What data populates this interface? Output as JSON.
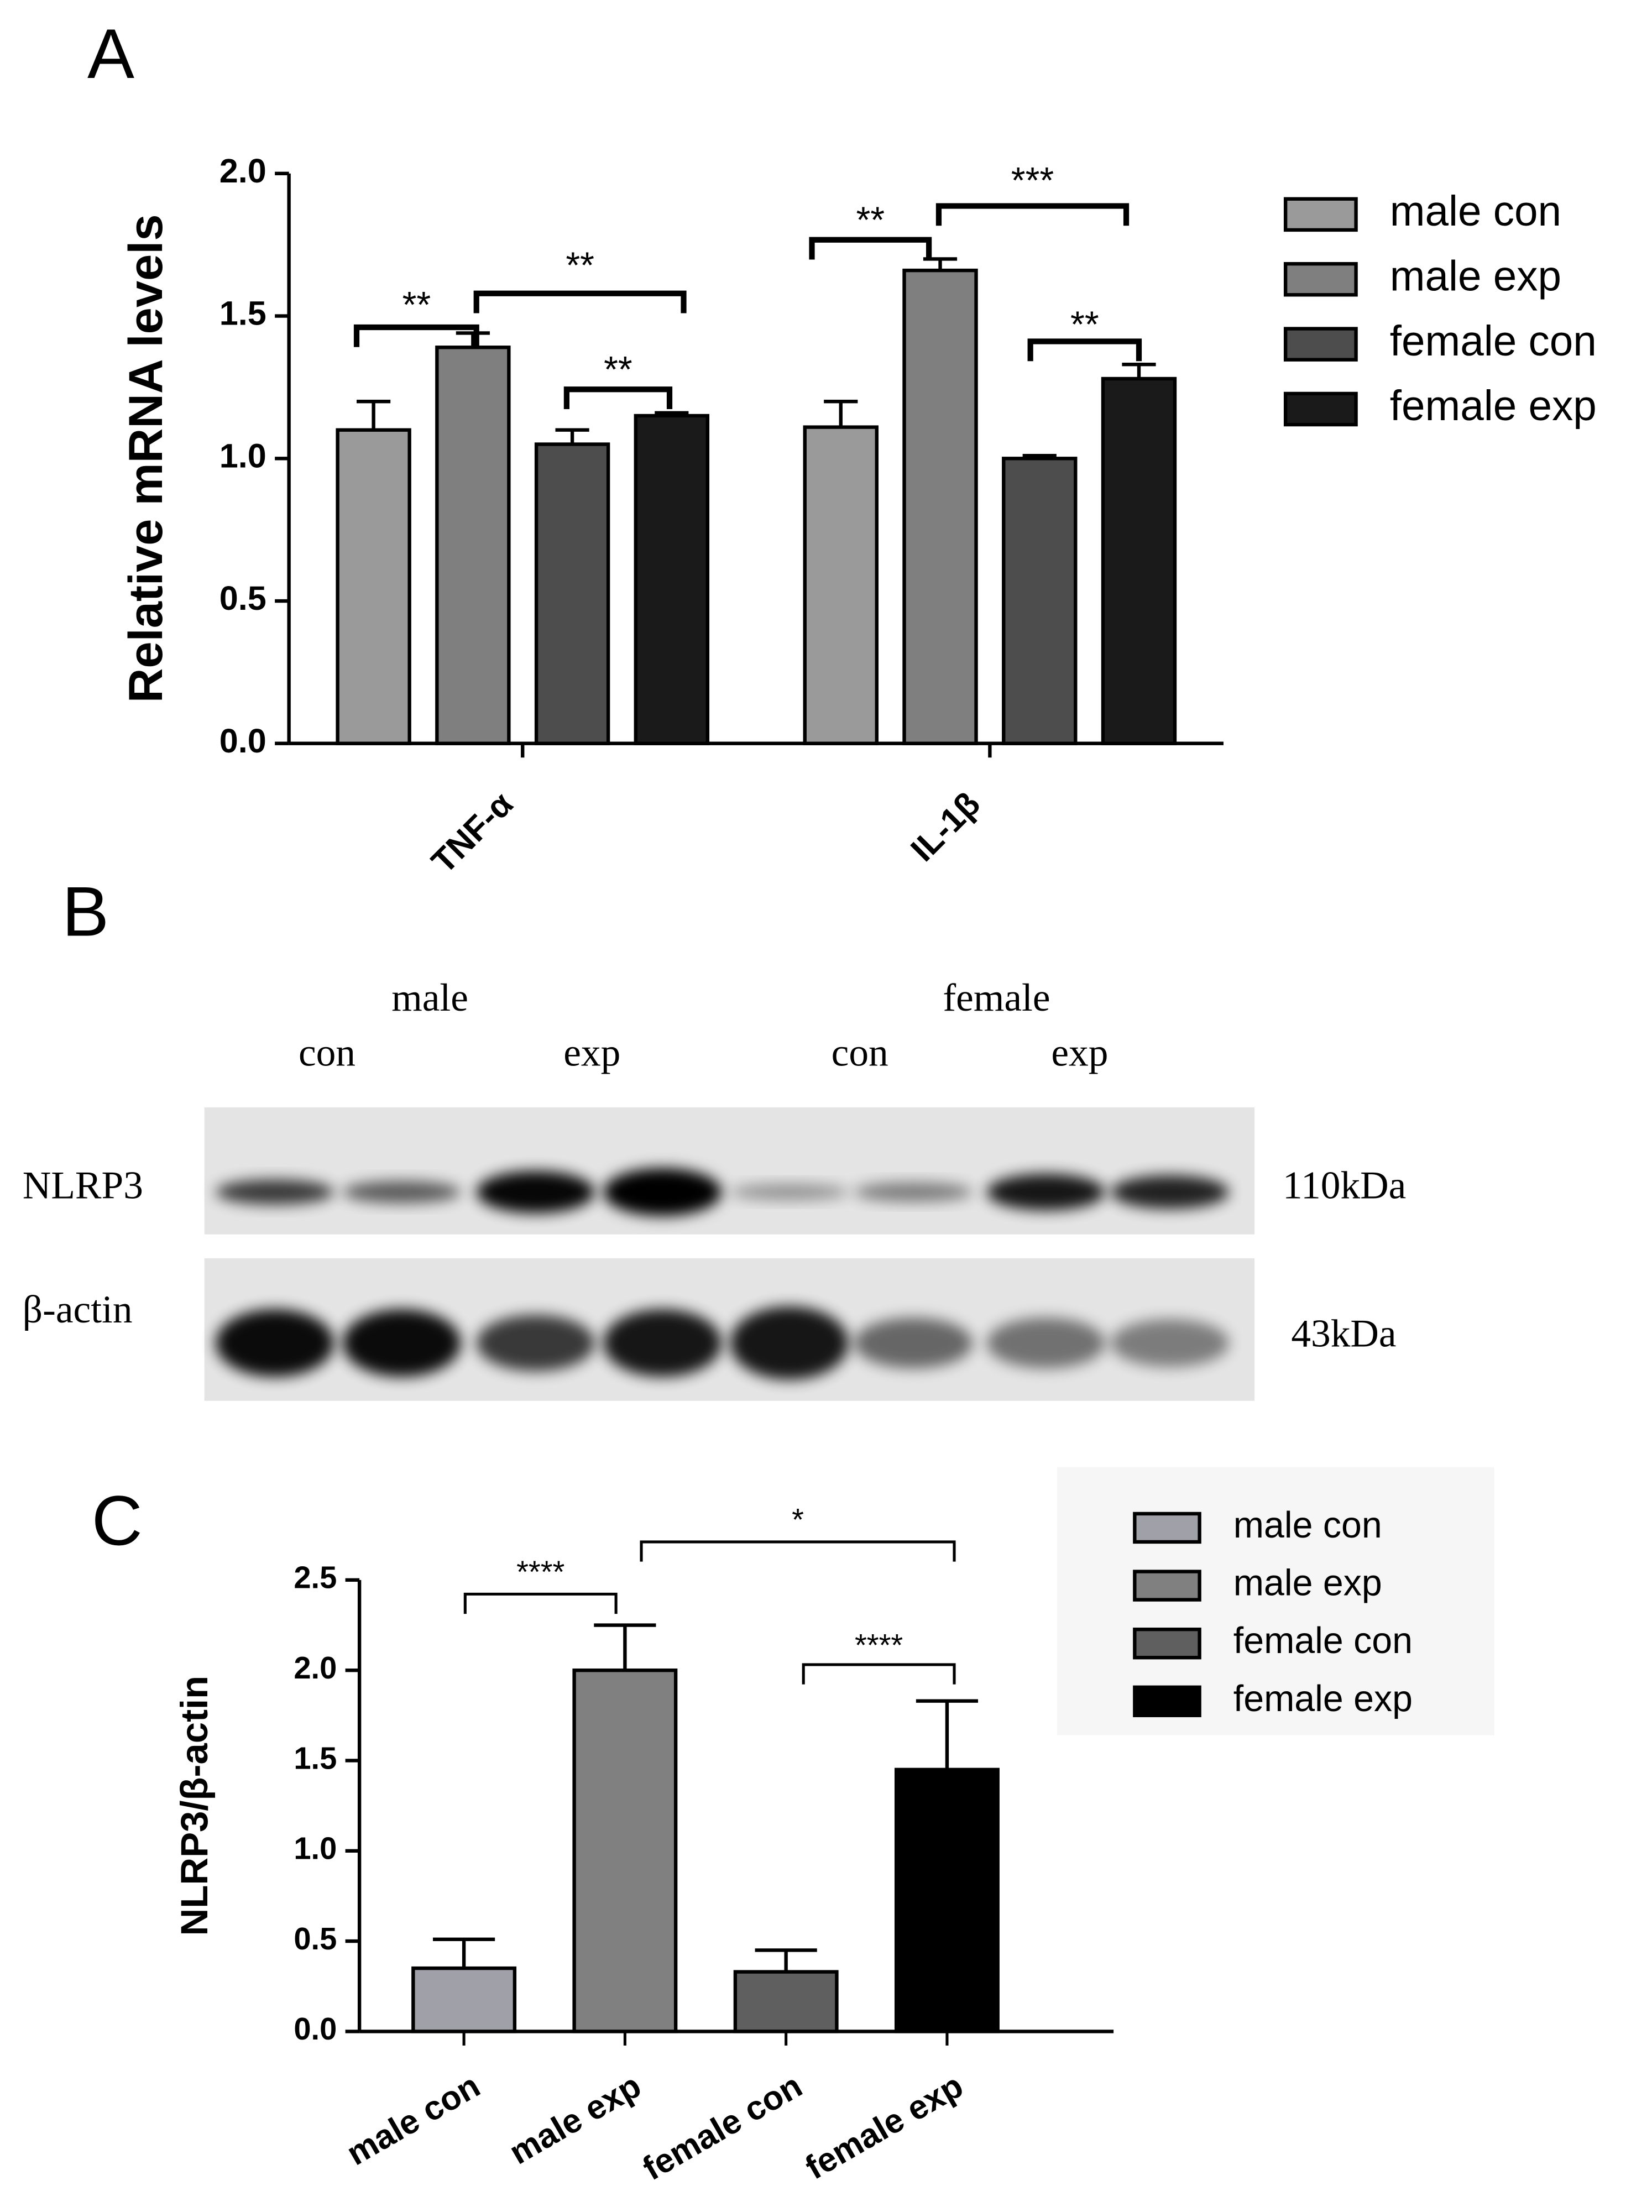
{
  "chart_data": [
    {
      "type": "grouped_bar",
      "panel_label": "A",
      "ylabel": "Relative mRNA levels",
      "categories": [
        "TNF-α",
        "IL-1β"
      ],
      "series": [
        {
          "name": "male con",
          "color": "#9a9a9a",
          "values": [
            1.1,
            1.11
          ],
          "errors": [
            0.1,
            0.09
          ]
        },
        {
          "name": "male exp",
          "color": "#7f7f7f",
          "values": [
            1.39,
            1.66
          ],
          "errors": [
            0.05,
            0.04
          ]
        },
        {
          "name": "female con",
          "color": "#4d4d4d",
          "values": [
            1.05,
            1.0
          ],
          "errors": [
            0.05,
            0.01
          ]
        },
        {
          "name": "female exp",
          "color": "#1a1a1a",
          "values": [
            1.15,
            1.28
          ],
          "errors": [
            0.01,
            0.05
          ]
        }
      ],
      "ylim": [
        0,
        2
      ],
      "yticks": [
        {
          "value": 0,
          "label": "0.0"
        },
        {
          "value": 0.5,
          "label": "0.5"
        },
        {
          "value": 1,
          "label": "1.0"
        },
        {
          "value": 1.5,
          "label": "1.5"
        },
        {
          "value": 2,
          "label": "2.0"
        }
      ],
      "annotations": [
        "**",
        "**",
        "**",
        "**",
        "***",
        "**"
      ]
    },
    {
      "type": "bar",
      "panel_label": "C",
      "ylabel": "NLRP3/β-actin",
      "categories": [
        "male con",
        "male exp",
        "female con",
        "female exp"
      ],
      "values": [
        0.35,
        2.0,
        0.33,
        1.45
      ],
      "errors": [
        0.16,
        0.25,
        0.12,
        0.38
      ],
      "colors": [
        "#a0a0a8",
        "#808080",
        "#5f5f5f",
        "#000000"
      ],
      "ylim": [
        0,
        2.5
      ],
      "yticks": [
        {
          "value": 0,
          "label": "0.0"
        },
        {
          "value": 0.5,
          "label": "0.5"
        },
        {
          "value": 1,
          "label": "1.0"
        },
        {
          "value": 1.5,
          "label": "1.5"
        },
        {
          "value": 2,
          "label": "2.0"
        },
        {
          "value": 2.5,
          "label": "2.5"
        }
      ],
      "annotations": [
        "****",
        "*",
        "****"
      ]
    }
  ],
  "blot": {
    "panel_label": "B",
    "groups": [
      "male",
      "female"
    ],
    "lanes": [
      "con",
      "exp",
      "con",
      "exp"
    ],
    "rows": [
      {
        "name": "NLRP3",
        "size": "110kDa"
      },
      {
        "name": "β-actin",
        "size": "43kDa"
      }
    ]
  }
}
